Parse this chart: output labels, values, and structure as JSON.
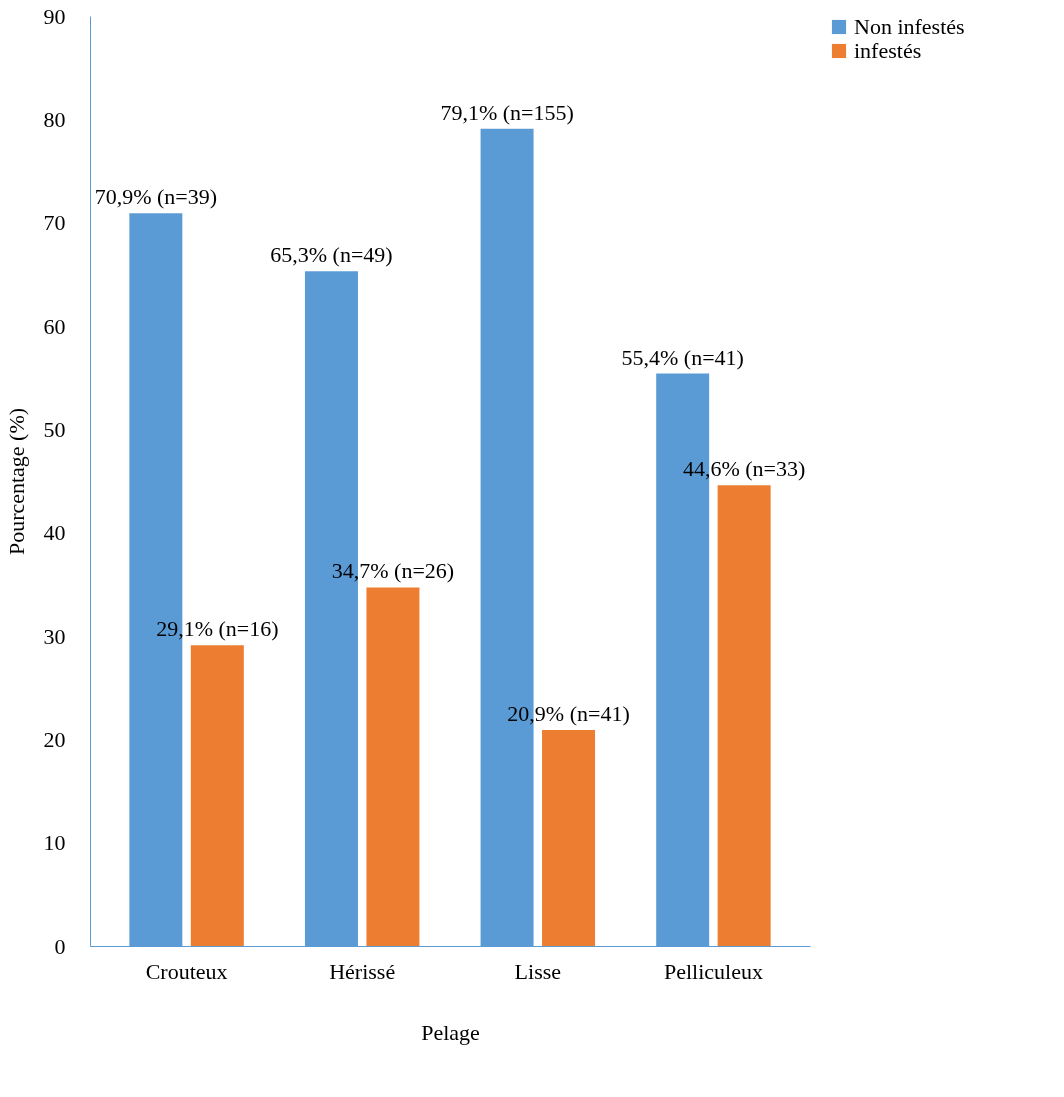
{
  "chart_data": {
    "type": "bar",
    "xlabel": "Pelage",
    "ylabel": "Pourcentage (%)",
    "categories": [
      "Crouteux",
      "Hérissé",
      "Lisse",
      "Pelliculeux"
    ],
    "series": [
      {
        "name": "Non infestés",
        "color": "#5b9bd5",
        "values": [
          70.9,
          65.3,
          79.1,
          55.4
        ],
        "value_labels": [
          "70,9% (n=39)",
          "65,3% (n=49)",
          "79,1% (n=155)",
          "55,4% (n=41)"
        ]
      },
      {
        "name": "infestés",
        "color": "#ed7d31",
        "values": [
          29.1,
          34.7,
          20.9,
          44.6
        ],
        "value_labels": [
          "29,1% (n=16)",
          "34,7% (n=26)",
          "20,9% (n=41)",
          "44,6% (n=33)"
        ]
      }
    ],
    "ylim": [
      0,
      90
    ],
    "yticks": [
      0,
      10,
      20,
      30,
      40,
      50,
      60,
      70,
      80,
      90
    ],
    "grid": false,
    "legend": "right"
  }
}
